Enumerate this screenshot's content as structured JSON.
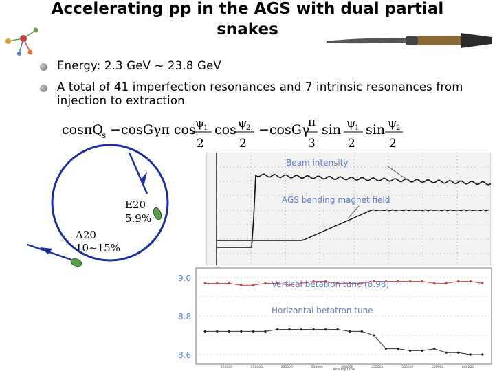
{
  "slide": {
    "title": "Accelerating pp in the AGS with dual partial snakes",
    "bullets": [
      "Energy: 2.3 GeV ~ 23.8 GeV",
      "A total of 41 imperfection resonances and 7 intrinsic resonances from injection to extraction"
    ]
  },
  "formula": {
    "cos_qs": "cosπQ",
    "qs_sub": "s",
    "minus1": "−",
    "term2": "cosGγπ  cos",
    "psi1": "ψ",
    "psi_sub1": "1",
    "two": "2",
    "cos": "cos",
    "psi2": "ψ",
    "psi_sub2": "2",
    "minus2": "−cosGγ",
    "pi": "π",
    "three": "3",
    "sin": "sin"
  },
  "snakes": {
    "e20_label": "E20",
    "e20_value": "5.9%",
    "a20_label": "A20",
    "a20_value": "10~15%"
  },
  "scope": {
    "beam_label": "Beam intensity",
    "field_label": "AGS bending magnet field"
  },
  "tune_plot": {
    "vertical_label": "Vertical betatron tune (8.98)",
    "horizontal_label": "Horizontal betatron tune",
    "y_ticks": [
      "9.0",
      "8.8",
      "8.6"
    ],
    "x_ticks": [
      "200000",
      "250000",
      "300000",
      "350000",
      "400000",
      "450000",
      "500000",
      "550000",
      "600000"
    ],
    "x_axis_title": "kickTrigTime",
    "colors": {
      "vertical": "#d03a3a",
      "horizontal": "#333333",
      "label_blue": "#6080c0"
    }
  },
  "chart_data": {
    "type": "line",
    "x": [
      165000,
      185000,
      205000,
      225000,
      245000,
      265000,
      285000,
      305000,
      325000,
      345000,
      365000,
      385000,
      405000,
      425000,
      445000,
      465000,
      485000,
      505000,
      525000,
      545000,
      565000,
      585000,
      605000,
      625000
    ],
    "series": [
      {
        "name": "Vertical betatron tune (8.98)",
        "values": [
          8.97,
          8.97,
          8.97,
          8.96,
          8.96,
          8.97,
          8.97,
          8.96,
          8.97,
          8.98,
          8.98,
          8.97,
          8.97,
          8.97,
          8.98,
          8.98,
          8.98,
          8.98,
          8.98,
          8.97,
          8.97,
          8.98,
          8.98,
          8.97
        ]
      },
      {
        "name": "Horizontal betatron tune",
        "values": [
          8.72,
          8.72,
          8.72,
          8.72,
          8.72,
          8.72,
          8.73,
          8.73,
          8.73,
          8.73,
          8.73,
          8.73,
          8.72,
          8.72,
          8.7,
          8.63,
          8.63,
          8.62,
          8.62,
          8.63,
          8.61,
          8.61,
          8.6,
          8.6
        ]
      }
    ],
    "ylim": [
      8.55,
      9.05
    ],
    "xlim": [
      150000,
      640000
    ],
    "xlabel": "kickTrigTime",
    "grid": true
  }
}
